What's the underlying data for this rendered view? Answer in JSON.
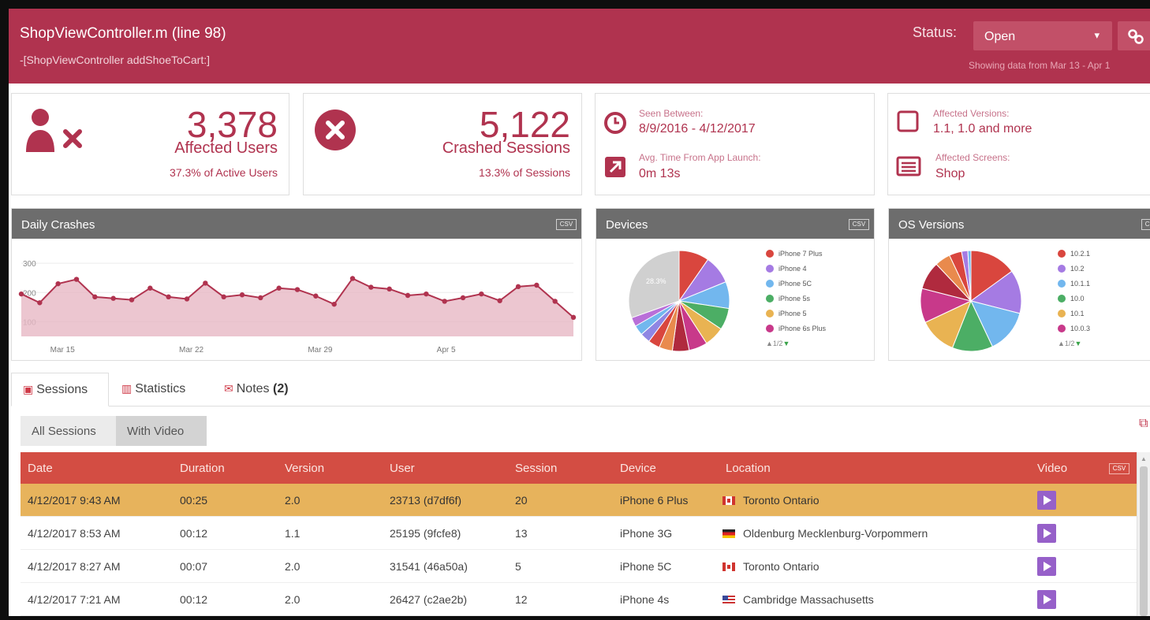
{
  "header": {
    "title": "ShopViewController.m (line 98)",
    "subtitle": "-[ShopViewController addShoeToCart:]",
    "status_label": "Status:",
    "status_value": "Open",
    "range_text": "Showing data from Mar 13 - Apr 1"
  },
  "cards": {
    "users": {
      "value": "3,378",
      "label": "Affected Users",
      "sub": "37.3% of Active Users"
    },
    "sessions": {
      "value": "5,122",
      "label": "Crashed Sessions",
      "sub": "13.3% of Sessions"
    },
    "seen": {
      "seen_label": "Seen Between:",
      "seen_value": "8/9/2016 - 4/12/2017",
      "avg_label": "Avg. Time From App Launch:",
      "avg_value": "0m 13s"
    },
    "versions": {
      "versions_label": "Affected Versions:",
      "versions_value": "1.1, 1.0 and more",
      "screens_label": "Affected Screens:",
      "screens_value": "Shop"
    }
  },
  "panels": {
    "daily_title": "Daily Crashes",
    "devices_title": "Devices",
    "os_title": "OS Versions",
    "csv": "CSV"
  },
  "chart_data": [
    {
      "type": "area",
      "title": "Daily Crashes",
      "x_labels": [
        "Mar 15",
        "Mar 22",
        "Mar 29",
        "Apr 5"
      ],
      "y_ticks": [
        100,
        200,
        300
      ],
      "ylim": [
        50,
        330
      ],
      "values": [
        195,
        165,
        230,
        245,
        185,
        180,
        175,
        215,
        185,
        178,
        232,
        185,
        192,
        182,
        215,
        210,
        188,
        160,
        248,
        218,
        212,
        190,
        195,
        170,
        182,
        195,
        172,
        220,
        225,
        170,
        115
      ],
      "color": "#b0334f"
    },
    {
      "type": "pie",
      "title": "Devices",
      "center_label": "28.3%",
      "legend": [
        "iPhone 7 Plus",
        "iPhone 4",
        "iPhone 5C",
        "iPhone 5s",
        "iPhone 5",
        "iPhone 6s Plus"
      ],
      "legend_colors": [
        "#d9463e",
        "#a57be3",
        "#72b7ee",
        "#4cae65",
        "#e9b352",
        "#c8398a"
      ],
      "pager": "1/2",
      "slices": [
        {
          "label": "iPhone 7 Plus",
          "value": 9,
          "color": "#d9463e"
        },
        {
          "label": "iPhone 4",
          "value": 8.5,
          "color": "#a57be3"
        },
        {
          "label": "iPhone 5C",
          "value": 8,
          "color": "#72b7ee"
        },
        {
          "label": "iPhone 5s",
          "value": 6.5,
          "color": "#4cae65"
        },
        {
          "label": "iPhone 5",
          "value": 6,
          "color": "#e9b352"
        },
        {
          "label": "iPhone 6s Plus",
          "value": 5.5,
          "color": "#c8398a"
        },
        {
          "label": "Other",
          "value": 5,
          "color": "#b02a3e"
        },
        {
          "label": "Other",
          "value": 4,
          "color": "#e98a4d"
        },
        {
          "label": "Other",
          "value": 3.5,
          "color": "#d9463e"
        },
        {
          "label": "Other",
          "value": 3,
          "color": "#8f86e3"
        },
        {
          "label": "Other",
          "value": 3,
          "color": "#72b7ee"
        },
        {
          "label": "Other",
          "value": 2.7,
          "color": "#b96fd8"
        },
        {
          "label": "Other (28.3%)",
          "value": 28.3,
          "color": "#d0d0d0"
        }
      ]
    },
    {
      "type": "pie",
      "title": "OS Versions",
      "legend": [
        "10.2.1",
        "10.2",
        "10.1.1",
        "10.0",
        "10.1",
        "10.0.3"
      ],
      "legend_colors": [
        "#d9463e",
        "#a57be3",
        "#72b7ee",
        "#4cae65",
        "#e9b352",
        "#c8398a"
      ],
      "pager": "1/2",
      "slices": [
        {
          "label": "10.2.1",
          "value": 15,
          "color": "#d9463e"
        },
        {
          "label": "10.2",
          "value": 14,
          "color": "#a57be3"
        },
        {
          "label": "10.1.1",
          "value": 14,
          "color": "#72b7ee"
        },
        {
          "label": "10.0",
          "value": 13,
          "color": "#4cae65"
        },
        {
          "label": "10.1",
          "value": 12,
          "color": "#e9b352"
        },
        {
          "label": "10.0.3",
          "value": 11,
          "color": "#c8398a"
        },
        {
          "label": "Other",
          "value": 9,
          "color": "#b02a3e"
        },
        {
          "label": "Other",
          "value": 5,
          "color": "#e98a4d"
        },
        {
          "label": "Other",
          "value": 4,
          "color": "#d9463e"
        },
        {
          "label": "Other",
          "value": 2,
          "color": "#a57be3"
        },
        {
          "label": "Other",
          "value": 1,
          "color": "#72b7ee"
        }
      ]
    }
  ],
  "tabs": {
    "sessions": "Sessions",
    "statistics": "Statistics",
    "notes": "Notes",
    "notes_count": "(2)"
  },
  "filters": {
    "all": "All Sessions",
    "video": "With Video"
  },
  "table": {
    "columns": [
      "Date",
      "Duration",
      "Version",
      "User",
      "Session",
      "Device",
      "Location",
      "Video"
    ],
    "csv": "CSV",
    "rows": [
      {
        "date": "4/12/2017 9:43 AM",
        "duration": "00:25",
        "version": "2.0",
        "user": "23713 (d7df6f)",
        "session": "20",
        "device": "iPhone 6 Plus",
        "location": "Toronto Ontario",
        "flag": "ca"
      },
      {
        "date": "4/12/2017 8:53 AM",
        "duration": "00:12",
        "version": "1.1",
        "user": "25195 (9fcfe8)",
        "session": "13",
        "device": "iPhone 3G",
        "location": "Oldenburg Mecklenburg-Vorpommern",
        "flag": "de"
      },
      {
        "date": "4/12/2017 8:27 AM",
        "duration": "00:07",
        "version": "2.0",
        "user": "31541 (46a50a)",
        "session": "5",
        "device": "iPhone 5C",
        "location": "Toronto Ontario",
        "flag": "ca"
      },
      {
        "date": "4/12/2017 7:21 AM",
        "duration": "00:12",
        "version": "2.0",
        "user": "26427 (c2ae2b)",
        "session": "12",
        "device": "iPhone 4s",
        "location": "Cambridge Massachusetts",
        "flag": "us"
      }
    ]
  }
}
